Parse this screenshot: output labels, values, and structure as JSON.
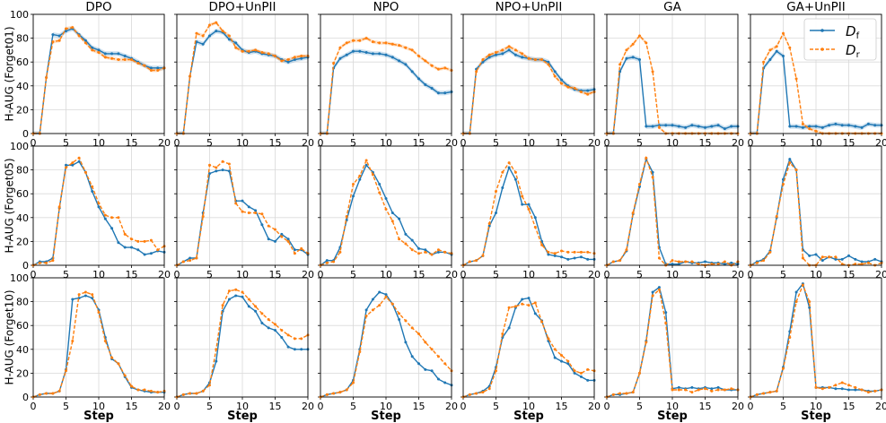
{
  "chart_data": {
    "type": "line",
    "layout": "3x6 grid of line panels with shared axes",
    "column_titles": [
      "DPO",
      "DPO+UnPII",
      "NPO",
      "NPO+UnPII",
      "GA",
      "GA+UnPII"
    ],
    "row_labels": [
      "H-AUG (Forget01)",
      "H-AUG (Forget05)",
      "H-AUG (Forget10)"
    ],
    "xlabel": "Step",
    "xlim": [
      0,
      20
    ],
    "ylim": [
      0,
      100
    ],
    "xticks": [
      "0",
      "5",
      "10",
      "15",
      "20"
    ],
    "yticks": [
      "0",
      "20",
      "40",
      "60",
      "80",
      "100"
    ],
    "grid": true,
    "legend": {
      "placement": "top-right of last panel in first row",
      "entries": [
        {
          "base": "D",
          "sub": "f",
          "color": "#1f77b4",
          "style": "solid"
        },
        {
          "base": "D",
          "sub": "r",
          "color": "#ff7f0e",
          "style": "dashed"
        }
      ]
    },
    "x": [
      0,
      1,
      2,
      3,
      4,
      5,
      6,
      7,
      8,
      9,
      10,
      11,
      12,
      13,
      14,
      15,
      16,
      17,
      18,
      19,
      20
    ],
    "panels": [
      [
        {
          "f": [
            0,
            0,
            47,
            83,
            82,
            86,
            88,
            83,
            78,
            72,
            70,
            67,
            67,
            67,
            65,
            63,
            60,
            57,
            55,
            55,
            55
          ],
          "r": [
            0,
            0,
            47,
            77,
            78,
            88,
            89,
            82,
            76,
            70,
            68,
            64,
            63,
            62,
            62,
            62,
            59,
            57,
            53,
            53,
            55
          ]
        },
        {
          "f": [
            0,
            0,
            48,
            77,
            75,
            82,
            86,
            85,
            79,
            76,
            70,
            68,
            69,
            67,
            66,
            65,
            62,
            60,
            62,
            63,
            64
          ],
          "r": [
            0,
            0,
            48,
            84,
            82,
            91,
            93,
            86,
            82,
            72,
            69,
            69,
            70,
            68,
            67,
            65,
            61,
            62,
            64,
            65,
            65
          ]
        },
        {
          "f": [
            0,
            0,
            55,
            63,
            66,
            69,
            69,
            68,
            67,
            67,
            66,
            64,
            61,
            58,
            52,
            46,
            41,
            38,
            34,
            34,
            35
          ],
          "r": [
            0,
            0,
            59,
            72,
            76,
            78,
            78,
            80,
            77,
            76,
            76,
            75,
            74,
            72,
            70,
            65,
            61,
            57,
            54,
            55,
            53
          ]
        },
        {
          "f": [
            0,
            0,
            54,
            60,
            64,
            66,
            67,
            70,
            66,
            64,
            63,
            62,
            62,
            60,
            52,
            45,
            40,
            37,
            36,
            36,
            37
          ],
          "r": [
            0,
            0,
            52,
            62,
            66,
            68,
            70,
            73,
            70,
            67,
            63,
            62,
            62,
            58,
            48,
            42,
            39,
            38,
            35,
            33,
            35
          ]
        },
        {
          "f": [
            0,
            0,
            52,
            63,
            64,
            62,
            6,
            6,
            7,
            7,
            7,
            6,
            5,
            7,
            6,
            5,
            6,
            7,
            4,
            6,
            6
          ],
          "r": [
            0,
            0,
            58,
            70,
            75,
            82,
            76,
            52,
            5,
            0,
            0,
            0,
            0,
            0,
            0,
            0,
            0,
            0,
            0,
            0,
            0
          ]
        },
        {
          "f": [
            0,
            0,
            55,
            62,
            69,
            65,
            6,
            6,
            5,
            6,
            6,
            5,
            7,
            8,
            7,
            7,
            6,
            5,
            8,
            7,
            7
          ],
          "r": [
            0,
            0,
            60,
            70,
            73,
            84,
            72,
            46,
            8,
            4,
            2,
            0,
            0,
            0,
            0,
            0,
            0,
            0,
            0,
            0,
            0
          ]
        }
      ],
      [
        {
          "f": [
            0,
            3,
            3,
            6,
            48,
            84,
            84,
            87,
            78,
            62,
            49,
            39,
            31,
            19,
            15,
            15,
            13,
            9,
            10,
            12,
            11
          ],
          "r": [
            0,
            2,
            2,
            4,
            49,
            82,
            86,
            90,
            78,
            66,
            52,
            42,
            40,
            40,
            26,
            22,
            20,
            20,
            21,
            13,
            16
          ]
        },
        {
          "f": [
            0,
            3,
            6,
            6,
            44,
            77,
            79,
            80,
            79,
            54,
            54,
            49,
            46,
            34,
            22,
            20,
            26,
            22,
            13,
            13,
            9
          ],
          "r": [
            0,
            3,
            4,
            6,
            41,
            84,
            82,
            87,
            85,
            52,
            45,
            44,
            44,
            43,
            33,
            30,
            24,
            20,
            10,
            14,
            10
          ]
        },
        {
          "f": [
            0,
            4,
            4,
            15,
            38,
            58,
            72,
            84,
            78,
            68,
            56,
            44,
            39,
            26,
            21,
            14,
            13,
            9,
            11,
            11,
            9
          ],
          "r": [
            0,
            2,
            3,
            11,
            41,
            68,
            75,
            88,
            76,
            61,
            47,
            37,
            22,
            18,
            13,
            10,
            11,
            9,
            13,
            11,
            10
          ]
        },
        {
          "f": [
            0,
            3,
            4,
            8,
            33,
            44,
            65,
            82,
            72,
            51,
            51,
            40,
            20,
            9,
            8,
            7,
            5,
            6,
            7,
            5,
            5
          ],
          "r": [
            0,
            3,
            4,
            8,
            35,
            62,
            78,
            86,
            78,
            58,
            47,
            32,
            17,
            11,
            10,
            12,
            11,
            11,
            11,
            11,
            10
          ]
        },
        {
          "f": [
            0,
            3,
            4,
            12,
            43,
            66,
            89,
            78,
            15,
            1,
            1,
            1,
            3,
            2,
            2,
            3,
            2,
            2,
            1,
            2,
            1
          ],
          "r": [
            0,
            3,
            4,
            13,
            44,
            68,
            90,
            74,
            6,
            0,
            4,
            3,
            3,
            3,
            1,
            0,
            1,
            1,
            3,
            0,
            3
          ]
        },
        {
          "f": [
            0,
            3,
            5,
            12,
            40,
            72,
            89,
            80,
            13,
            8,
            9,
            4,
            7,
            5,
            5,
            8,
            5,
            3,
            3,
            5,
            3
          ],
          "r": [
            0,
            2,
            4,
            11,
            41,
            68,
            86,
            80,
            6,
            0,
            0,
            7,
            7,
            7,
            1,
            0,
            1,
            1,
            2,
            0,
            2
          ]
        }
      ],
      [
        {
          "f": [
            0,
            2,
            3,
            3,
            5,
            23,
            82,
            83,
            85,
            83,
            73,
            50,
            32,
            28,
            17,
            8,
            6,
            5,
            4,
            4,
            4
          ],
          "r": [
            0,
            2,
            3,
            3,
            5,
            22,
            47,
            86,
            88,
            86,
            71,
            47,
            33,
            28,
            18,
            9,
            6,
            6,
            5,
            4,
            5
          ]
        },
        {
          "f": [
            0,
            2,
            3,
            3,
            5,
            12,
            30,
            72,
            82,
            85,
            84,
            76,
            72,
            62,
            58,
            56,
            50,
            42,
            40,
            40,
            40
          ],
          "r": [
            0,
            2,
            3,
            3,
            5,
            10,
            40,
            77,
            89,
            90,
            88,
            82,
            76,
            70,
            65,
            61,
            56,
            52,
            49,
            49,
            52
          ]
        },
        {
          "f": [
            0,
            2,
            3,
            4,
            6,
            14,
            40,
            73,
            82,
            88,
            86,
            78,
            65,
            46,
            34,
            28,
            23,
            22,
            15,
            12,
            10
          ],
          "r": [
            0,
            2,
            3,
            4,
            6,
            12,
            38,
            68,
            73,
            77,
            84,
            78,
            70,
            64,
            58,
            53,
            46,
            40,
            34,
            28,
            22
          ]
        },
        {
          "f": [
            0,
            2,
            3,
            5,
            9,
            25,
            50,
            58,
            75,
            82,
            83,
            70,
            64,
            47,
            33,
            30,
            28,
            20,
            17,
            14,
            14
          ],
          "r": [
            0,
            2,
            3,
            4,
            7,
            22,
            53,
            75,
            76,
            78,
            77,
            79,
            63,
            49,
            40,
            35,
            30,
            22,
            20,
            23,
            22
          ]
        },
        {
          "f": [
            0,
            2,
            2,
            3,
            4,
            20,
            47,
            88,
            92,
            71,
            7,
            8,
            7,
            8,
            7,
            8,
            7,
            8,
            6,
            6,
            6
          ],
          "r": [
            0,
            2,
            3,
            3,
            4,
            20,
            46,
            85,
            90,
            62,
            6,
            6,
            6,
            4,
            6,
            7,
            5,
            6,
            6,
            7,
            6
          ]
        },
        {
          "f": [
            0,
            2,
            3,
            4,
            5,
            25,
            55,
            88,
            95,
            75,
            8,
            8,
            8,
            7,
            7,
            6,
            6,
            6,
            5,
            5,
            6
          ],
          "r": [
            0,
            2,
            3,
            4,
            5,
            24,
            50,
            80,
            94,
            80,
            8,
            7,
            8,
            10,
            12,
            10,
            8,
            6,
            4,
            5,
            6
          ]
        }
      ]
    ]
  }
}
